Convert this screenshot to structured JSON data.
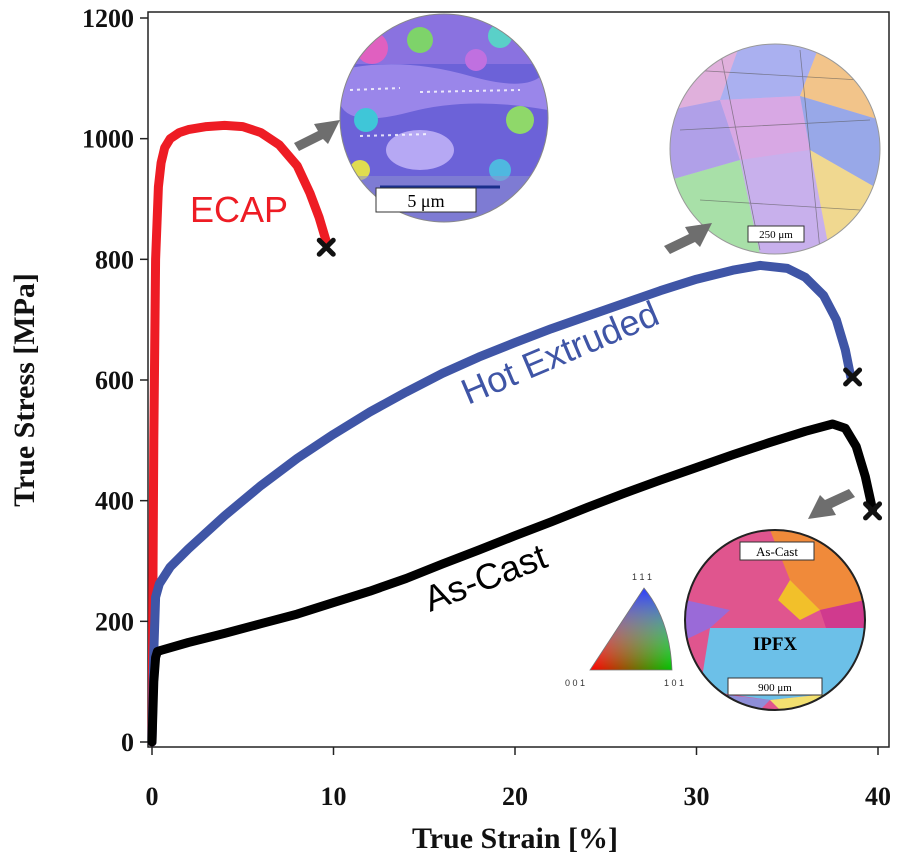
{
  "chart_data": {
    "type": "line",
    "xlabel": "True Strain [%]",
    "ylabel": "True Stress [MPa]",
    "xlim": [
      0,
      40
    ],
    "ylim": [
      0,
      1200
    ],
    "xticks": [
      0,
      10,
      20,
      30,
      40
    ],
    "yticks": [
      0,
      200,
      400,
      600,
      800,
      1000,
      1200
    ],
    "grid": false,
    "legend": "none",
    "series": [
      {
        "name": "ECAP",
        "color": "#ee1c24",
        "x": [
          0,
          0.05,
          0.1,
          0.2,
          0.35,
          0.5,
          0.7,
          1.0,
          1.5,
          2.0,
          3.0,
          4.0,
          5.0,
          6.0,
          7.0,
          8.0,
          8.7,
          9.2,
          9.6
        ],
        "y": [
          0,
          250,
          500,
          800,
          920,
          960,
          985,
          1000,
          1010,
          1015,
          1020,
          1022,
          1020,
          1010,
          990,
          955,
          910,
          870,
          830
        ],
        "fracture": [
          9.6,
          820
        ]
      },
      {
        "name": "Hot Extruded",
        "color": "#3f55a6",
        "x": [
          0,
          0.1,
          0.2,
          0.4,
          1,
          2,
          4,
          6,
          8,
          10,
          12,
          14,
          16,
          18,
          20,
          22,
          24,
          26,
          28,
          30,
          32,
          33.5,
          35,
          36,
          37,
          37.7,
          38.2,
          38.5
        ],
        "y": [
          0,
          150,
          240,
          262,
          290,
          320,
          375,
          425,
          470,
          510,
          547,
          580,
          611,
          638,
          662,
          685,
          706,
          727,
          748,
          767,
          782,
          790,
          785,
          770,
          740,
          700,
          650,
          605
        ],
        "fracture": [
          38.6,
          605
        ]
      },
      {
        "name": "As-Cast",
        "color": "#000000",
        "x": [
          0,
          0.1,
          0.2,
          0.3,
          0.5,
          2,
          4,
          6,
          8,
          10,
          12,
          14,
          16,
          18,
          20,
          22,
          24,
          26,
          28,
          30,
          32,
          34,
          36,
          37.5,
          38.2,
          38.8,
          39.3,
          39.7
        ],
        "y": [
          0,
          100,
          140,
          150,
          152,
          165,
          180,
          196,
          212,
          231,
          250,
          271,
          295,
          318,
          342,
          365,
          389,
          412,
          434,
          455,
          476,
          496,
          515,
          527,
          520,
          490,
          440,
          385
        ],
        "fracture": [
          39.7,
          383
        ]
      }
    ]
  },
  "insets": {
    "ecap_scale": "5 μm",
    "hot_scale": "250 μm",
    "ascast_label": "As-Cast",
    "ascast_map": "IPFX",
    "ascast_scale": "900 μm",
    "key_111": "1 1 1",
    "key_001": "0 0 1",
    "key_101": "1 0 1"
  }
}
